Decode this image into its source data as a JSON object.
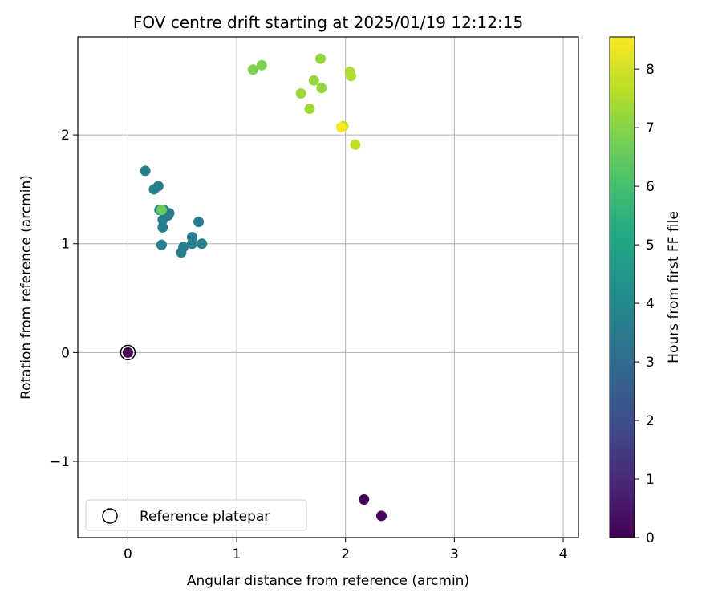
{
  "chart_data": {
    "type": "scatter",
    "title": "FOV centre drift starting at 2025/01/19 12:12:15",
    "xlabel": "Angular distance from reference (arcmin)",
    "ylabel": "Rotation from reference (arcmin)",
    "xlim": [
      -0.46,
      4.14
    ],
    "ylim": [
      -1.7,
      2.9
    ],
    "xticks": [
      0,
      1,
      2,
      3,
      4
    ],
    "xtick_labels": [
      "0",
      "1",
      "2",
      "3",
      "4"
    ],
    "yticks": [
      -1,
      0,
      1,
      2
    ],
    "ytick_labels": [
      "−1",
      "0",
      "1",
      "2"
    ],
    "grid": true,
    "legend": {
      "placement": "lower-left",
      "entries": [
        "Reference platepar"
      ]
    },
    "colorbar": {
      "label": "Hours from first FF file",
      "range": [
        0,
        8.55
      ],
      "ticks": [
        0,
        1,
        2,
        3,
        4,
        5,
        6,
        7,
        8
      ],
      "tick_labels": [
        "0",
        "1",
        "2",
        "3",
        "4",
        "5",
        "6",
        "7",
        "8"
      ],
      "colormap": "viridis"
    },
    "reference_point": {
      "x": 0,
      "y": 0
    },
    "colors": {
      "reference_marker_edge": "#000000",
      "grid": "#b0b0b0"
    },
    "points": [
      {
        "x": 0.0,
        "y": 0.0,
        "h": 0.0
      },
      {
        "x": 2.17,
        "y": -1.35,
        "h": 0.05
      },
      {
        "x": 2.33,
        "y": -1.5,
        "h": 0.1
      },
      {
        "x": 0.16,
        "y": 1.67,
        "h": 3.6
      },
      {
        "x": 0.24,
        "y": 1.5,
        "h": 3.6
      },
      {
        "x": 0.28,
        "y": 1.53,
        "h": 3.6
      },
      {
        "x": 0.29,
        "y": 1.31,
        "h": 3.6
      },
      {
        "x": 0.33,
        "y": 1.31,
        "h": 3.6
      },
      {
        "x": 0.32,
        "y": 1.22,
        "h": 3.6
      },
      {
        "x": 0.32,
        "y": 1.15,
        "h": 3.6
      },
      {
        "x": 0.38,
        "y": 1.28,
        "h": 3.6
      },
      {
        "x": 0.37,
        "y": 1.26,
        "h": 3.6
      },
      {
        "x": 0.31,
        "y": 0.99,
        "h": 3.6
      },
      {
        "x": 0.65,
        "y": 1.2,
        "h": 3.6
      },
      {
        "x": 0.59,
        "y": 1.06,
        "h": 3.6
      },
      {
        "x": 0.59,
        "y": 1.0,
        "h": 3.6
      },
      {
        "x": 0.68,
        "y": 1.0,
        "h": 3.6
      },
      {
        "x": 0.51,
        "y": 0.97,
        "h": 3.6
      },
      {
        "x": 0.49,
        "y": 0.92,
        "h": 3.6
      },
      {
        "x": 0.31,
        "y": 1.31,
        "h": 6.6
      },
      {
        "x": 1.15,
        "y": 2.6,
        "h": 6.9
      },
      {
        "x": 1.23,
        "y": 2.64,
        "h": 6.9
      },
      {
        "x": 1.77,
        "y": 2.7,
        "h": 7.2
      },
      {
        "x": 1.71,
        "y": 2.5,
        "h": 7.2
      },
      {
        "x": 1.59,
        "y": 2.38,
        "h": 7.3
      },
      {
        "x": 1.78,
        "y": 2.43,
        "h": 7.2
      },
      {
        "x": 1.67,
        "y": 2.24,
        "h": 7.3
      },
      {
        "x": 2.04,
        "y": 2.58,
        "h": 7.5
      },
      {
        "x": 2.05,
        "y": 2.54,
        "h": 7.5
      },
      {
        "x": 1.98,
        "y": 2.08,
        "h": 7.6
      },
      {
        "x": 2.09,
        "y": 1.91,
        "h": 7.7
      },
      {
        "x": 1.96,
        "y": 2.07,
        "h": 8.5
      }
    ]
  }
}
